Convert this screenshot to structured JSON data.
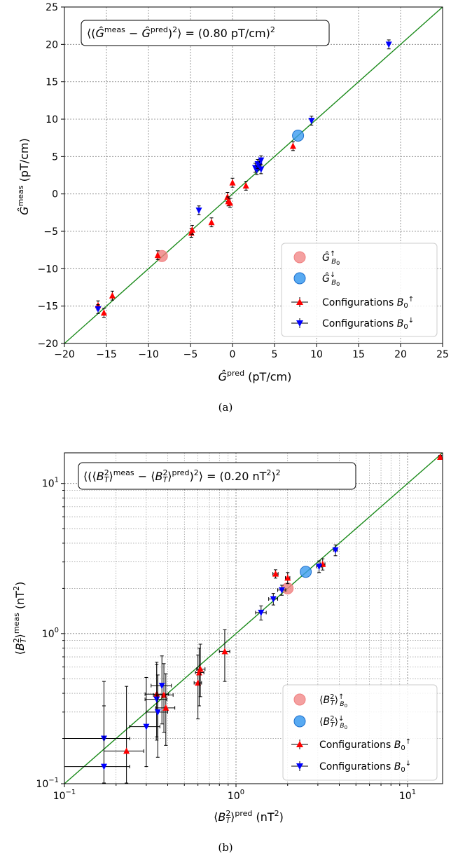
{
  "chart_data": [
    {
      "id": "a",
      "type": "scatter",
      "caption": "(a)",
      "xlabel": "Ĝpred (pT/cm)",
      "ylabel": "Ĝmeas (pT/cm)",
      "xlim": [
        -20,
        25
      ],
      "ylim": [
        -20,
        25
      ],
      "xticks": [
        "−20",
        "−15",
        "−10",
        "−5",
        "0",
        "5",
        "10",
        "15",
        "20",
        "25"
      ],
      "yticks": [
        "−20",
        "−15",
        "−10",
        "−5",
        "0",
        "5",
        "10",
        "15",
        "20",
        "25"
      ],
      "grid": true,
      "scale": "linear",
      "annotation": "⟨(Ĝmeas − Ĝpred)2⟩ = (0.80 pT/cm)2",
      "reference_line": "y = x",
      "legend_position": "lower-right",
      "legend": [
        {
          "label": "Ĝ↑B0",
          "marker": "circle",
          "color": "#f08080"
        },
        {
          "label": "Ĝ↓B0",
          "marker": "circle",
          "color": "#3b9bf0"
        },
        {
          "label": "Configurations B0↑",
          "marker": "triangle-up",
          "color": "#ff0000"
        },
        {
          "label": "Configurations B0↓",
          "marker": "triangle-down",
          "color": "#0000ff"
        }
      ],
      "series": [
        {
          "name": "Ĝ↑B0",
          "marker": "circle",
          "color": "#f08080",
          "points": [
            {
              "x": -8.4,
              "y": -8.3
            }
          ]
        },
        {
          "name": "Ĝ↓B0",
          "marker": "circle",
          "color": "#3b9bf0",
          "points": [
            {
              "x": 7.8,
              "y": 7.8
            }
          ]
        },
        {
          "name": "Configurations B0↑",
          "marker": "triangle-up",
          "color": "#ff0000",
          "points": [
            {
              "x": -16.0,
              "y": -14.9,
              "yerr": 0.6
            },
            {
              "x": -15.3,
              "y": -15.9,
              "yerr": 0.6
            },
            {
              "x": -14.3,
              "y": -13.6,
              "yerr": 0.6
            },
            {
              "x": -8.9,
              "y": -8.2,
              "yerr": 0.6
            },
            {
              "x": -4.9,
              "y": -5.2,
              "yerr": 0.6
            },
            {
              "x": -4.8,
              "y": -4.8,
              "yerr": 0.6
            },
            {
              "x": -2.5,
              "y": -3.8,
              "yerr": 0.6
            },
            {
              "x": -0.6,
              "y": -0.4,
              "yerr": 0.6
            },
            {
              "x": -0.5,
              "y": -1.0,
              "yerr": 0.6
            },
            {
              "x": -0.3,
              "y": -1.2,
              "yerr": 0.6
            },
            {
              "x": 0.0,
              "y": 1.5,
              "yerr": 0.6
            },
            {
              "x": 1.6,
              "y": 1.1,
              "yerr": 0.6
            },
            {
              "x": 7.2,
              "y": 6.4,
              "yerr": 0.6
            }
          ]
        },
        {
          "name": "Configurations B0↓",
          "marker": "triangle-down",
          "color": "#0000ff",
          "points": [
            {
              "x": -16.0,
              "y": -15.4,
              "yerr": 0.6
            },
            {
              "x": -4.0,
              "y": -2.2,
              "yerr": 0.6
            },
            {
              "x": 2.7,
              "y": 3.5,
              "yerr": 0.6
            },
            {
              "x": 2.9,
              "y": 3.2,
              "yerr": 0.6
            },
            {
              "x": 3.0,
              "y": 4.0,
              "yerr": 0.6
            },
            {
              "x": 3.2,
              "y": 3.8,
              "yerr": 0.6
            },
            {
              "x": 3.4,
              "y": 4.5,
              "yerr": 0.6
            },
            {
              "x": 3.4,
              "y": 3.3,
              "yerr": 0.6
            },
            {
              "x": 9.4,
              "y": 9.8,
              "yerr": 0.6
            },
            {
              "x": 18.6,
              "y": 20.0,
              "yerr": 0.6
            }
          ]
        }
      ]
    },
    {
      "id": "b",
      "type": "scatter",
      "caption": "(b)",
      "xlabel": "⟨B2T⟩pred (nT2)",
      "ylabel": "⟨B2T⟩meas (nT2)",
      "scale": "log",
      "xlim": [
        0.1,
        16
      ],
      "ylim": [
        0.1,
        16
      ],
      "xticks": [
        "10−1",
        "100",
        "101"
      ],
      "yticks": [
        "10−1",
        "100",
        "101"
      ],
      "grid": true,
      "annotation": "⟨(⟨B2T⟩meas − ⟨B2T⟩pred)2⟩ = (0.20 nT2)2",
      "reference_line": "y = x",
      "legend_position": "lower-right",
      "legend": [
        {
          "label": "⟨B2T⟩↑B0",
          "marker": "circle",
          "color": "#f08080"
        },
        {
          "label": "⟨B2T⟩↓B0",
          "marker": "circle",
          "color": "#3b9bf0"
        },
        {
          "label": "Configurations B0↑",
          "marker": "triangle-up",
          "color": "#ff0000"
        },
        {
          "label": "Configurations B0↓",
          "marker": "triangle-down",
          "color": "#0000ff"
        }
      ],
      "series": [
        {
          "name": "⟨B2T⟩↑B0",
          "marker": "circle",
          "color": "#f08080",
          "points": [
            {
              "x": 2.0,
              "y": 2.0
            }
          ]
        },
        {
          "name": "⟨B2T⟩↓B0",
          "marker": "circle",
          "color": "#3b9bf0",
          "points": [
            {
              "x": 2.55,
              "y": 2.58
            }
          ]
        },
        {
          "name": "Configurations B0↑",
          "marker": "triangle-up",
          "color": "#ff0000",
          "points": [
            {
              "x": 0.23,
              "y": 0.165,
              "xlo": 0.06,
              "xhi": 0.06,
              "ylo": 0.08,
              "yhi": 0.28
            },
            {
              "x": 0.345,
              "y": 0.395,
              "xlo": 0.05,
              "xhi": 0.06,
              "ylo": 0.19,
              "yhi": 0.25
            },
            {
              "x": 0.38,
              "y": 0.39,
              "xlo": 0.05,
              "xhi": 0.05,
              "ylo": 0.17,
              "yhi": 0.24
            },
            {
              "x": 0.39,
              "y": 0.32,
              "xlo": 0.05,
              "xhi": 0.05,
              "ylo": 0.14,
              "yhi": 0.22
            },
            {
              "x": 0.6,
              "y": 0.47,
              "xlo": 0.03,
              "xhi": 0.03,
              "ylo": 0.2,
              "yhi": 0.25
            },
            {
              "x": 0.61,
              "y": 0.55,
              "xlo": 0.03,
              "xhi": 0.04,
              "ylo": 0.22,
              "yhi": 0.25
            },
            {
              "x": 0.62,
              "y": 0.58,
              "xlo": 0.03,
              "xhi": 0.04,
              "ylo": 0.2,
              "yhi": 0.27
            },
            {
              "x": 0.86,
              "y": 0.76,
              "xlo": 0.06,
              "xhi": 0.06,
              "ylo": 0.28,
              "yhi": 0.3
            },
            {
              "x": 1.7,
              "y": 2.5,
              "xlo": 0.06,
              "xhi": 0.06,
              "ylo": 0.16,
              "yhi": 0.16
            },
            {
              "x": 2.0,
              "y": 2.35,
              "xlo": 0.06,
              "xhi": 0.06,
              "ylo": 0.2,
              "yhi": 0.2
            },
            {
              "x": 3.2,
              "y": 2.9,
              "xlo": 0.1,
              "xhi": 0.1,
              "ylo": 0.25,
              "yhi": 0.25
            },
            {
              "x": 15.5,
              "y": 15.0,
              "xlo": 0.3,
              "xhi": 0.3,
              "ylo": 0.4,
              "yhi": 0.4
            }
          ]
        },
        {
          "name": "Configurations B0↓",
          "marker": "triangle-down",
          "color": "#0000ff",
          "points": [
            {
              "x": 0.17,
              "y": 0.2,
              "xlo": 0.07,
              "xhi": 0.07,
              "ylo": 0.1,
              "yhi": 0.28
            },
            {
              "x": 0.17,
              "y": 0.13,
              "xlo": 0.07,
              "xhi": 0.07,
              "ylo": 0.06,
              "yhi": 0.2
            },
            {
              "x": 0.3,
              "y": 0.24,
              "xlo": 0.06,
              "xhi": 0.06,
              "ylo": 0.11,
              "yhi": 0.27
            },
            {
              "x": 0.345,
              "y": 0.365,
              "xlo": 0.05,
              "xhi": 0.05,
              "ylo": 0.17,
              "yhi": 0.26
            },
            {
              "x": 0.35,
              "y": 0.3,
              "xlo": 0.05,
              "xhi": 0.05,
              "ylo": 0.15,
              "yhi": 0.23
            },
            {
              "x": 0.37,
              "y": 0.45,
              "xlo": 0.05,
              "xhi": 0.05,
              "ylo": 0.2,
              "yhi": 0.26
            },
            {
              "x": 1.4,
              "y": 1.38,
              "xlo": 0.1,
              "xhi": 0.1,
              "ylo": 0.15,
              "yhi": 0.15
            },
            {
              "x": 1.65,
              "y": 1.7,
              "xlo": 0.1,
              "xhi": 0.1,
              "ylo": 0.15,
              "yhi": 0.15
            },
            {
              "x": 1.85,
              "y": 1.95,
              "xlo": 0.1,
              "xhi": 0.1,
              "ylo": 0.15,
              "yhi": 0.15
            },
            {
              "x": 3.05,
              "y": 2.8,
              "xlo": 0.1,
              "xhi": 0.1,
              "ylo": 0.25,
              "yhi": 0.25
            },
            {
              "x": 3.8,
              "y": 3.6,
              "xlo": 0.1,
              "xhi": 0.1,
              "ylo": 0.3,
              "yhi": 0.3
            }
          ]
        }
      ]
    }
  ]
}
